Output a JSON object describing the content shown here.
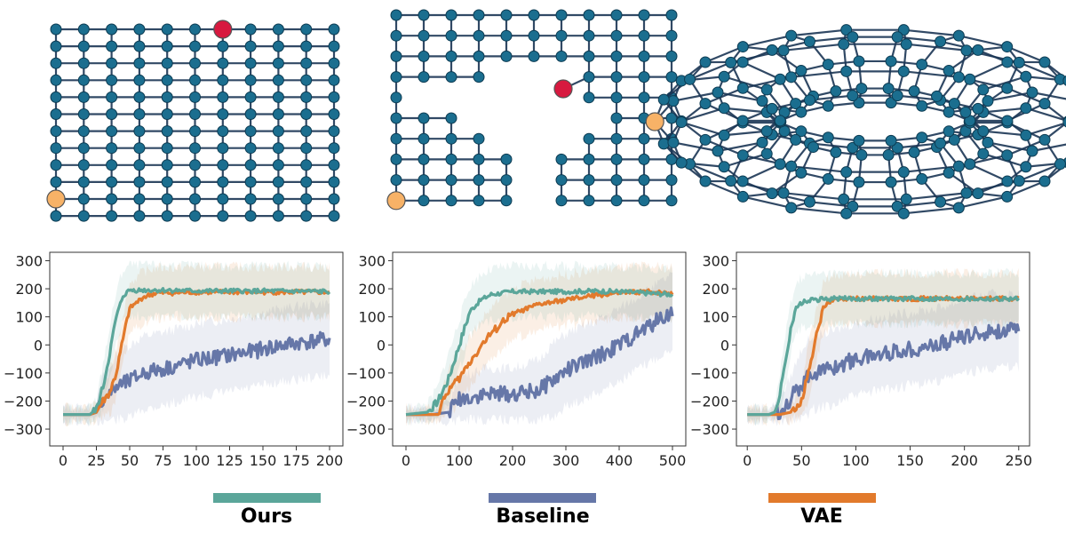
{
  "figure": {
    "colors": {
      "Ours": "#5ba69a",
      "Baseline": "#6677a8",
      "VAE": "#e27a2c",
      "node": "#1b6e8f",
      "edge": "#1b3554",
      "start": "#f7b267",
      "goal": "#d7193f"
    },
    "graphs": [
      {
        "kind": "grid",
        "rows": 12,
        "cols": 11,
        "start": "bottom-left",
        "goal": "top row, 7th column"
      },
      {
        "kind": "grid with obstacle cut-outs",
        "start": "bottom-left",
        "goal": "center"
      },
      {
        "kind": "torus",
        "start": "left",
        "goal": "right"
      }
    ]
  },
  "legend": [
    {
      "label": "Ours",
      "color": "#5ba69a"
    },
    {
      "label": "Baseline",
      "color": "#6677a8"
    },
    {
      "label": "VAE",
      "color": "#e27a2c"
    }
  ],
  "chart_data": [
    {
      "type": "line",
      "title": "",
      "xlabel": "",
      "ylabel": "",
      "xlim": [
        -10,
        210
      ],
      "ylim": [
        -360,
        330
      ],
      "xticks": [
        0,
        25,
        50,
        75,
        100,
        125,
        150,
        175,
        200
      ],
      "yticks": [
        -300,
        -200,
        -100,
        0,
        100,
        200,
        300
      ],
      "grid": false,
      "legend_placement": "below",
      "series": [
        {
          "name": "Ours",
          "color": "#5ba69a",
          "x": [
            0,
            20,
            25,
            30,
            35,
            40,
            45,
            50,
            60,
            80,
            100,
            150,
            200
          ],
          "y": [
            -248,
            -248,
            -230,
            -150,
            -30,
            100,
            175,
            195,
            195,
            195,
            192,
            192,
            190
          ]
        },
        {
          "name": "Baseline",
          "color": "#6677a8",
          "x": [
            0,
            20,
            25,
            30,
            35,
            40,
            50,
            60,
            70,
            80,
            100,
            120,
            140,
            160,
            180,
            200
          ],
          "y": [
            -248,
            -248,
            -240,
            -190,
            -175,
            -150,
            -130,
            -100,
            -90,
            -80,
            -55,
            -40,
            -25,
            -5,
            10,
            20
          ]
        },
        {
          "name": "VAE",
          "color": "#e27a2c",
          "x": [
            0,
            20,
            25,
            30,
            35,
            40,
            45,
            50,
            55,
            60,
            70,
            80,
            100,
            150,
            200
          ],
          "y": [
            -248,
            -248,
            -240,
            -200,
            -170,
            -100,
            20,
            130,
            150,
            170,
            185,
            185,
            188,
            188,
            188
          ]
        }
      ]
    },
    {
      "type": "line",
      "title": "",
      "xlabel": "",
      "ylabel": "",
      "xlim": [
        -25,
        525
      ],
      "ylim": [
        -360,
        330
      ],
      "xticks": [
        0,
        100,
        200,
        300,
        400,
        500
      ],
      "yticks": [
        -300,
        -200,
        -100,
        0,
        100,
        200,
        300
      ],
      "grid": false,
      "legend_placement": "below",
      "series": [
        {
          "name": "Ours",
          "color": "#5ba69a",
          "x": [
            0,
            40,
            60,
            80,
            100,
            120,
            140,
            160,
            200,
            250,
            300,
            350,
            400,
            450,
            500
          ],
          "y": [
            -248,
            -240,
            -200,
            -120,
            0,
            120,
            160,
            180,
            190,
            190,
            190,
            192,
            190,
            185,
            180
          ]
        },
        {
          "name": "Baseline",
          "color": "#6677a8",
          "x": [
            0,
            50,
            80,
            100,
            150,
            200,
            250,
            280,
            300,
            350,
            400,
            450,
            500
          ],
          "y": [
            -248,
            -248,
            -240,
            -190,
            -175,
            -175,
            -160,
            -120,
            -90,
            -50,
            0,
            60,
            120
          ]
        },
        {
          "name": "VAE",
          "color": "#e27a2c",
          "x": [
            0,
            60,
            70,
            80,
            100,
            120,
            150,
            180,
            200,
            250,
            300,
            350,
            400,
            450,
            500
          ],
          "y": [
            -248,
            -248,
            -200,
            -160,
            -120,
            -60,
            20,
            80,
            110,
            145,
            160,
            175,
            185,
            190,
            185
          ]
        }
      ]
    },
    {
      "type": "line",
      "title": "",
      "xlabel": "",
      "ylabel": "",
      "xlim": [
        -10,
        260
      ],
      "ylim": [
        -360,
        330
      ],
      "xticks": [
        0,
        50,
        100,
        150,
        200,
        250
      ],
      "yticks": [
        -300,
        -200,
        -100,
        0,
        100,
        200,
        300
      ],
      "grid": false,
      "legend_placement": "below",
      "series": [
        {
          "name": "Ours",
          "color": "#5ba69a",
          "x": [
            0,
            20,
            25,
            30,
            35,
            40,
            45,
            50,
            60,
            80,
            100,
            150,
            200,
            250
          ],
          "y": [
            -248,
            -248,
            -240,
            -180,
            -60,
            60,
            130,
            150,
            160,
            165,
            165,
            165,
            165,
            165
          ]
        },
        {
          "name": "Baseline",
          "color": "#6677a8",
          "x": [
            0,
            20,
            30,
            40,
            50,
            60,
            80,
            100,
            125,
            150,
            175,
            200,
            225,
            250
          ],
          "y": [
            -248,
            -248,
            -235,
            -190,
            -140,
            -100,
            -80,
            -50,
            -30,
            -15,
            0,
            30,
            50,
            50
          ]
        },
        {
          "name": "VAE",
          "color": "#e27a2c",
          "x": [
            0,
            30,
            40,
            50,
            55,
            60,
            65,
            70,
            75,
            80,
            100,
            150,
            200,
            250
          ],
          "y": [
            -248,
            -248,
            -240,
            -200,
            -120,
            -30,
            60,
            130,
            150,
            160,
            165,
            165,
            165,
            165
          ]
        }
      ]
    }
  ]
}
